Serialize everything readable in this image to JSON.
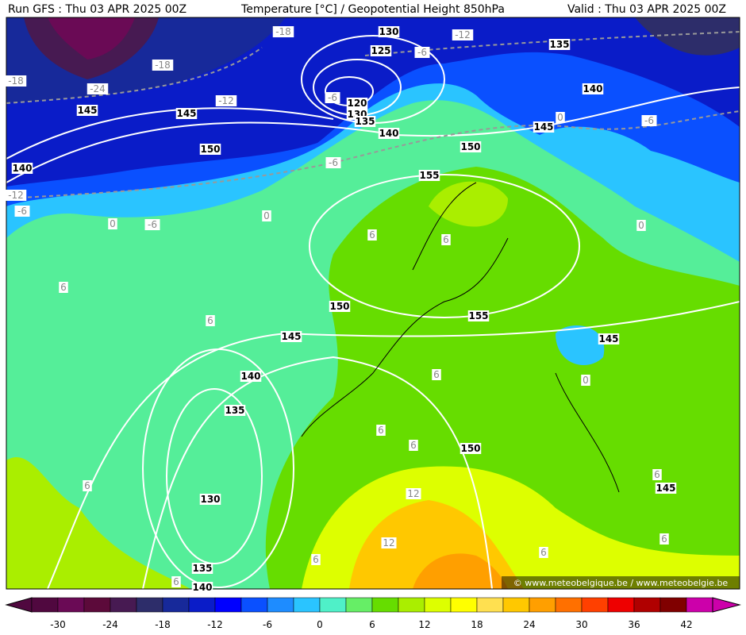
{
  "header": {
    "left": "Run GFS : Thu 03 APR 2025 00Z",
    "center": "Temperature [°C] / Geopotential Height 850hPa",
    "right": "Valid : Thu 03 APR 2025 00Z"
  },
  "contours": {
    "heights": [
      130,
      125,
      120,
      130,
      135,
      140,
      135,
      140,
      145,
      145,
      150,
      140,
      145,
      150,
      155,
      150,
      155,
      145,
      140,
      135,
      130,
      150,
      145,
      145,
      135,
      140
    ],
    "temperatures": [
      -18,
      -18,
      -24,
      -18,
      -12,
      -6,
      -12,
      -6,
      -6,
      -6,
      -12,
      -6,
      -6,
      0,
      0,
      0,
      0,
      0,
      6,
      6,
      6,
      6,
      6,
      6,
      6,
      6,
      6,
      6,
      6,
      6,
      6,
      12,
      12
    ]
  },
  "watermark": "© www.meteobelgique.be / www.meteobelgie.be",
  "colorbar": {
    "colors": [
      "#50083f",
      "#6a0a55",
      "#5c0a3a",
      "#471a52",
      "#2d2d6a",
      "#17299a",
      "#0a1cc8",
      "#0000ff",
      "#0a50ff",
      "#1e8cff",
      "#2ac4ff",
      "#4ff0c8",
      "#66ee66",
      "#66dd00",
      "#aaee00",
      "#ddff00",
      "#ffff00",
      "#ffe050",
      "#ffc800",
      "#ff9f00",
      "#ff7000",
      "#ff4000",
      "#ee0000",
      "#b00000",
      "#800000",
      "#cc00aa"
    ],
    "labels": [
      -30,
      -24,
      -18,
      -12,
      -6,
      0,
      6,
      12,
      18,
      24,
      30,
      36,
      42
    ]
  }
}
